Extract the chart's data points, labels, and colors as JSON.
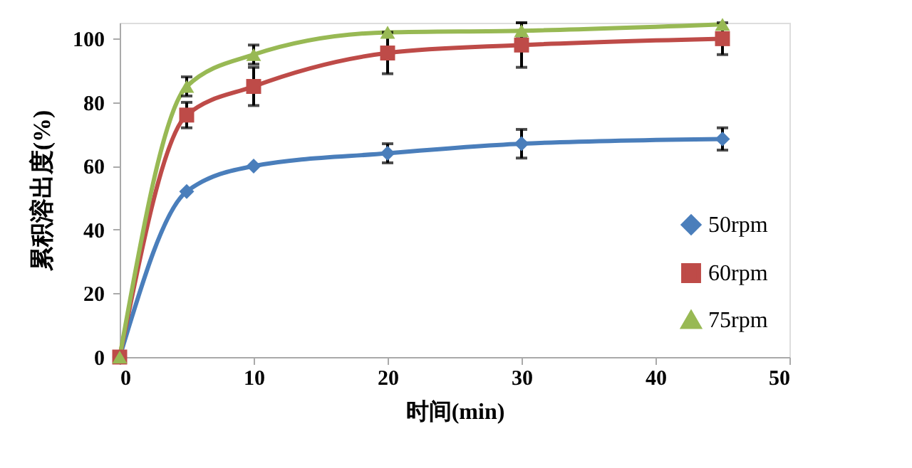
{
  "chart_data": {
    "type": "line",
    "xlabel": "时间(min)",
    "ylabel": "累积溶出度(%)",
    "x": [
      0,
      5,
      10,
      20,
      30,
      45
    ],
    "series": [
      {
        "name": "50rpm",
        "color": "#4a7ebb",
        "marker": "diamond",
        "values": [
          0,
          52,
          60,
          64,
          67,
          68.5
        ],
        "errors": [
          null,
          null,
          null,
          3,
          4.5,
          3.5
        ]
      },
      {
        "name": "60rpm",
        "color": "#be4b48",
        "marker": "square",
        "values": [
          0,
          76,
          85,
          95.5,
          98,
          100
        ],
        "errors": [
          null,
          4,
          6,
          6.5,
          7,
          5
        ]
      },
      {
        "name": "75rpm",
        "color": "#98b954",
        "marker": "triangle",
        "values": [
          0,
          85,
          95,
          102,
          102.5,
          104.5
        ],
        "errors": [
          null,
          3,
          3,
          null,
          2.5,
          null
        ]
      }
    ],
    "xlim": [
      0,
      50
    ],
    "xticks": [
      0,
      10,
      20,
      30,
      40,
      50
    ],
    "ylim": [
      0,
      105
    ],
    "yticks": [
      0,
      20,
      40,
      60,
      80,
      100
    ],
    "grid": false,
    "legend": "bottom right"
  }
}
